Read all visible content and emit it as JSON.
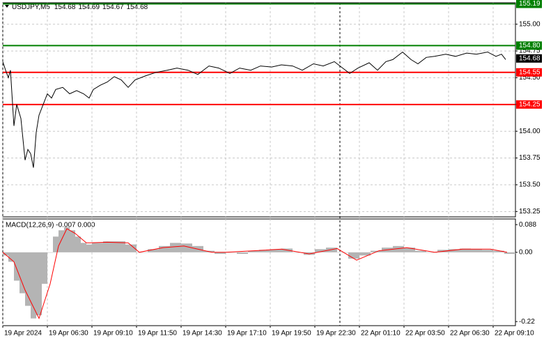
{
  "chart_data": {
    "type": "line",
    "title": "USDJPY,M5",
    "ohlc": [
      154.68,
      154.69,
      154.67,
      154.68
    ],
    "series": [
      {
        "color": "#000000",
        "x": [
          0,
          2,
          4,
          5.5,
          8,
          10,
          13,
          16,
          18,
          20,
          22,
          24,
          26,
          29,
          32,
          35,
          38,
          43,
          48,
          53,
          58,
          62,
          65,
          70,
          75,
          80,
          85,
          90,
          95,
          103,
          110,
          118,
          125,
          133,
          140,
          148,
          155,
          163,
          170,
          178,
          185,
          193,
          200,
          208,
          215,
          223,
          230,
          238,
          243,
          249,
          255,
          263,
          269,
          275,
          280,
          287,
          293,
          298,
          304,
          310,
          318,
          325,
          333,
          340,
          348,
          354,
          358,
          361
        ],
        "values": [
          154.65,
          154.57,
          154.5,
          154.57,
          154.05,
          154.25,
          154.12,
          153.73,
          153.83,
          153.79,
          153.66,
          153.99,
          154.15,
          154.25,
          154.35,
          154.31,
          154.39,
          154.41,
          154.35,
          154.38,
          154.35,
          154.31,
          154.39,
          154.43,
          154.46,
          154.51,
          154.48,
          154.41,
          154.48,
          154.52,
          154.55,
          154.57,
          154.59,
          154.57,
          154.53,
          154.61,
          154.59,
          154.54,
          154.59,
          154.57,
          154.61,
          154.6,
          154.62,
          154.61,
          154.57,
          154.63,
          154.61,
          154.65,
          154.6,
          154.54,
          154.59,
          154.64,
          154.57,
          154.65,
          154.67,
          154.74,
          154.67,
          154.63,
          154.69,
          154.7,
          154.72,
          154.7,
          154.73,
          154.72,
          154.74,
          154.7,
          154.72,
          154.67
        ]
      }
    ],
    "xlim": [
      0,
      368
    ],
    "ylim": [
      153.2,
      155.2
    ],
    "xticks": [
      {
        "value": 0,
        "label": "19 Apr 2024"
      },
      {
        "value": 32,
        "label": "19 Apr 06:30"
      },
      {
        "value": 64,
        "label": "19 Apr 09:10"
      },
      {
        "value": 96,
        "label": "19 Apr 11:50"
      },
      {
        "value": 128,
        "label": "19 Apr 14:30"
      },
      {
        "value": 160,
        "label": "19 Apr 17:10"
      },
      {
        "value": 192,
        "label": "19 Apr 19:50"
      },
      {
        "value": 224,
        "label": "19 Apr 22:30"
      },
      {
        "value": 256,
        "label": "22 Apr 01:10"
      },
      {
        "value": 288,
        "label": "22 Apr 03:50"
      },
      {
        "value": 320,
        "label": "22 Apr 06:30"
      },
      {
        "value": 352,
        "label": "22 Apr 09:10"
      }
    ],
    "yticks": [
      {
        "value": 155,
        "label": "155.00"
      },
      154.75,
      {
        "value": 154.5,
        "label": "154.50"
      },
      154.25,
      {
        "value": 154,
        "label": "154.00"
      },
      153.75,
      {
        "value": 153.5,
        "label": "153.50"
      },
      153.25
    ],
    "grid": true,
    "levels": [
      {
        "value": 155.19,
        "label": "155.19",
        "color": "#008000"
      },
      {
        "value": 154.8,
        "label": "154.80",
        "color": "#008000"
      },
      {
        "value": 154.55,
        "label": "154.55",
        "color": "#ff0000"
      },
      {
        "value": 154.25,
        "label": "154.25",
        "color": "#ff0000"
      }
    ],
    "current_price": 154.68,
    "vline_x": 242,
    "macd": {
      "label": "MACD(12,26,9) -0.007 0.000",
      "ylim": [
        -0.233,
        0.106
      ],
      "yticks": [
        0.088,
        {
          "value": 0,
          "label": "0.00"
        },
        -0.22
      ],
      "histogram": {
        "color": "#b4b4b4",
        "x": [
          0,
          4,
          8,
          12,
          16,
          20,
          24,
          28,
          32,
          36,
          40,
          44,
          48,
          52,
          56,
          60,
          64,
          72,
          80,
          88,
          96,
          104,
          112,
          120,
          128,
          136,
          144,
          152,
          160,
          168,
          176,
          184,
          192,
          200,
          208,
          216,
          224,
          232,
          240,
          248,
          256,
          264,
          272,
          280,
          288,
          296,
          304,
          312,
          320,
          328,
          336,
          344,
          352,
          360
        ],
        "values": [
          -0.01,
          -0.03,
          -0.09,
          -0.13,
          -0.17,
          -0.21,
          -0.2,
          -0.1,
          0.0,
          0.05,
          0.07,
          0.08,
          0.07,
          0.05,
          0.03,
          0.025,
          0.03,
          0.035,
          0.035,
          0.025,
          0.0,
          0.01,
          0.02,
          0.03,
          0.028,
          0.02,
          0.005,
          -0.005,
          0.0,
          -0.005,
          0.005,
          0.008,
          0.01,
          0.012,
          0.0,
          -0.008,
          0.01,
          0.015,
          0.0,
          -0.02,
          -0.01,
          0.005,
          0.015,
          0.02,
          0.015,
          0.005,
          0.0,
          0.008,
          0.01,
          0.012,
          0.01,
          0.008,
          0.005,
          -0.005
        ]
      },
      "signal": {
        "color": "#ff0000",
        "x": [
          0,
          8,
          16,
          26,
          34,
          40,
          46,
          52,
          60,
          75,
          90,
          98,
          115,
          130,
          150,
          160,
          180,
          200,
          220,
          240,
          254,
          270,
          290,
          310,
          330,
          350,
          362
        ],
        "values": [
          0.0,
          -0.03,
          -0.12,
          -0.21,
          -0.1,
          0.02,
          0.075,
          0.06,
          0.03,
          0.032,
          0.03,
          0.0,
          0.015,
          0.02,
          0.0,
          0.0,
          0.005,
          0.01,
          -0.005,
          0.012,
          -0.025,
          0.005,
          0.015,
          0.0,
          0.01,
          0.01,
          0.0
        ]
      }
    }
  }
}
